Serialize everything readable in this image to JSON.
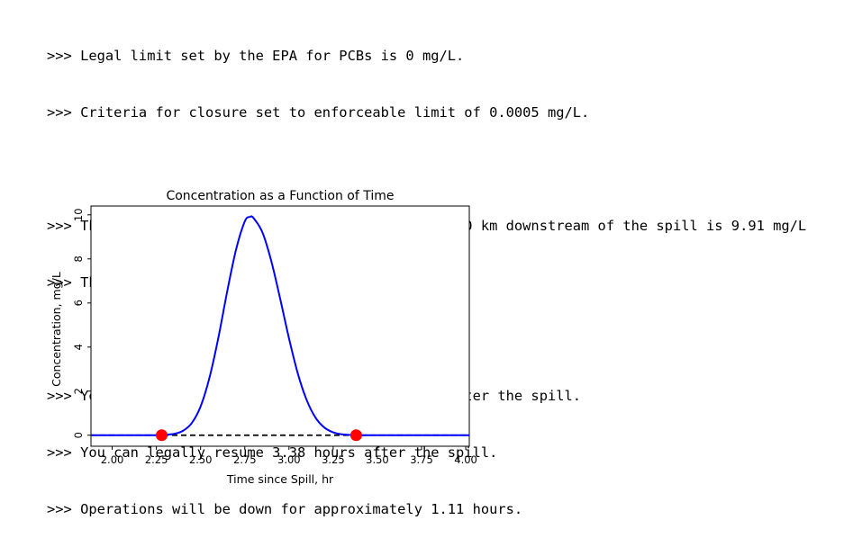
{
  "output": {
    "lines": [
      ">>> Legal limit set by the EPA for PCBs is 0 mg/L.",
      ">>> Criteria for closure set to enforceable limit of 0.0005 mg/L.",
      "",
      ">>> The maximum PCBs concentration at the site 10.0 km downstream of the spill is 9.91 mg/L",
      ">>> This occurs 2.78 hours after the spill.",
      "",
      ">>> You will have to stop operations 2.28 hours after the spill.",
      ">>> You can legally resume 3.38 hours after the spill.",
      ">>> Operations will be down for approximately 1.11 hours."
    ]
  },
  "chart_data": {
    "type": "line",
    "title": "Concentration as a Function of Time",
    "xlabel": "Time since Spill, hr",
    "ylabel": "Concentration, mg/L",
    "xlim": [
      1.88,
      4.02
    ],
    "ylim": [
      -0.5,
      10.4
    ],
    "xticks": [
      "2.00",
      "2.25",
      "2.50",
      "2.75",
      "3.00",
      "3.25",
      "3.50",
      "3.75",
      "4.00"
    ],
    "yticks": [
      "0",
      "2",
      "4",
      "6",
      "8",
      "10"
    ],
    "grid": false,
    "series": [
      {
        "color": "#0000ff",
        "x": [
          1.88,
          2.1,
          2.2,
          2.28,
          2.35,
          2.4,
          2.45,
          2.5,
          2.55,
          2.6,
          2.65,
          2.7,
          2.75,
          2.78,
          2.8,
          2.85,
          2.9,
          2.95,
          3.0,
          3.05,
          3.1,
          3.15,
          3.2,
          3.25,
          3.3,
          3.38,
          3.5,
          3.75,
          4.02
        ],
        "y": [
          0,
          0,
          0,
          0.01,
          0.06,
          0.2,
          0.55,
          1.3,
          2.6,
          4.4,
          6.5,
          8.4,
          9.7,
          9.91,
          9.85,
          9.2,
          7.9,
          6.2,
          4.4,
          2.8,
          1.6,
          0.8,
          0.35,
          0.13,
          0.04,
          0.0005,
          0,
          0,
          0
        ]
      }
    ],
    "reference_line": {
      "y": 0.0005,
      "style": "dashed",
      "color": "#000000"
    },
    "markers": [
      {
        "x": 2.28,
        "y": 0.0005,
        "color": "#ff0000"
      },
      {
        "x": 3.38,
        "y": 0.0005,
        "color": "#ff0000"
      }
    ]
  }
}
